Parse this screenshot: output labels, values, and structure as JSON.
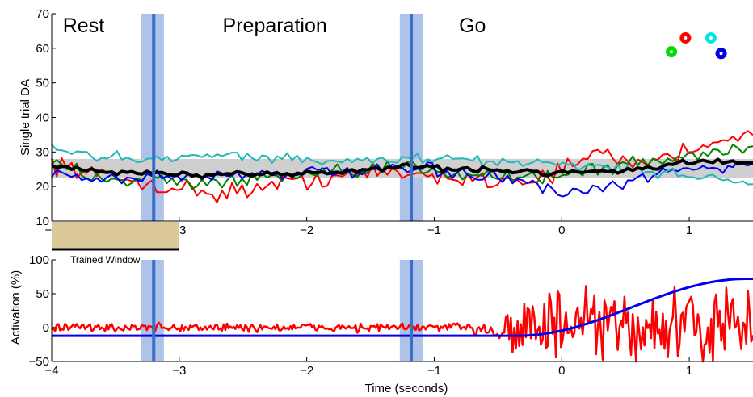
{
  "chart_data": [
    {
      "type": "line",
      "panel": "top",
      "ylabel": "Single trial DA",
      "xlim": [
        -4,
        1.5
      ],
      "ylim": [
        10,
        70
      ],
      "yticks": [
        10,
        20,
        30,
        40,
        50,
        60,
        70
      ],
      "xticks": [
        -4,
        -3,
        -2,
        -1,
        0,
        1
      ],
      "xtick_labels": [
        "−4",
        "−3",
        "−2",
        "−1",
        "0",
        "1"
      ],
      "phases": [
        {
          "label": "Rest",
          "x": -3.75
        },
        {
          "label": "Preparation",
          "x": -2.25
        },
        {
          "label": "Go",
          "x": -0.7
        }
      ],
      "event_lines": [
        {
          "x": -3.2,
          "band": [
            -3.3,
            -3.12
          ]
        },
        {
          "x": -1.18,
          "band": [
            -1.27,
            -1.09
          ]
        }
      ],
      "mean_band": [
        22.5,
        28
      ],
      "legend_markers": [
        {
          "color": "#ff0000",
          "x": 0.97,
          "y": 63
        },
        {
          "color": "#00e5e5",
          "x": 1.17,
          "y": 63
        },
        {
          "color": "#00dd00",
          "x": 0.86,
          "y": 59
        },
        {
          "color": "#0000dd",
          "x": 1.25,
          "y": 58.5
        }
      ],
      "series": [
        {
          "color": "#ff0000",
          "anchors": [
            [
              -4,
              27
            ],
            [
              -3.6,
              23
            ],
            [
              -3.1,
              20
            ],
            [
              -2.7,
              18
            ],
            [
              -2.3,
              20
            ],
            [
              -1.8,
              23
            ],
            [
              -1.4,
              24
            ],
            [
              -1.0,
              23
            ],
            [
              -0.6,
              22
            ],
            [
              -0.25,
              22
            ],
            [
              0.05,
              25
            ],
            [
              0.25,
              30
            ],
            [
              0.5,
              27
            ],
            [
              0.8,
              28
            ],
            [
              1.0,
              31
            ],
            [
              1.2,
              33
            ],
            [
              1.35,
              35
            ],
            [
              1.5,
              34
            ]
          ],
          "noise": 2.3
        },
        {
          "color": "#008000",
          "anchors": [
            [
              -4,
              26
            ],
            [
              -3.6,
              23
            ],
            [
              -3.2,
              22
            ],
            [
              -2.8,
              21
            ],
            [
              -2.4,
              22
            ],
            [
              -2.0,
              23
            ],
            [
              -1.6,
              24
            ],
            [
              -1.2,
              26
            ],
            [
              -0.8,
              24
            ],
            [
              -0.4,
              23
            ],
            [
              -0.1,
              23
            ],
            [
              0.3,
              25
            ],
            [
              0.6,
              27
            ],
            [
              0.9,
              28
            ],
            [
              1.1,
              29
            ],
            [
              1.3,
              31
            ],
            [
              1.5,
              32
            ]
          ],
          "noise": 1.9
        },
        {
          "color": "#0000ee",
          "anchors": [
            [
              -4,
              24
            ],
            [
              -3.6,
              22
            ],
            [
              -3.2,
              23
            ],
            [
              -2.8,
              23
            ],
            [
              -2.4,
              24
            ],
            [
              -2.0,
              24
            ],
            [
              -1.6,
              24
            ],
            [
              -1.2,
              25
            ],
            [
              -0.8,
              24
            ],
            [
              -0.4,
              22
            ],
            [
              -0.25,
              21
            ],
            [
              -0.05,
              18
            ],
            [
              0.2,
              18
            ],
            [
              0.5,
              21
            ],
            [
              0.8,
              24
            ],
            [
              1.0,
              25
            ],
            [
              1.3,
              26
            ],
            [
              1.5,
              27
            ]
          ],
          "noise": 1.6
        },
        {
          "color": "#20b8b8",
          "anchors": [
            [
              -4,
              31
            ],
            [
              -3.7,
              29
            ],
            [
              -3.3,
              28
            ],
            [
              -2.9,
              29
            ],
            [
              -2.5,
              29
            ],
            [
              -2.1,
              28
            ],
            [
              -1.7,
              27
            ],
            [
              -1.3,
              28
            ],
            [
              -0.9,
              28
            ],
            [
              -0.5,
              27
            ],
            [
              -0.1,
              27
            ],
            [
              0.2,
              26
            ],
            [
              0.5,
              25
            ],
            [
              0.8,
              24
            ],
            [
              1.1,
              23
            ],
            [
              1.5,
              21
            ]
          ],
          "noise": 1.3
        },
        {
          "color": "#000000",
          "width": 4,
          "anchors": [
            [
              -4,
              26
            ],
            [
              -3.6,
              24
            ],
            [
              -3.2,
              24
            ],
            [
              -2.8,
              23
            ],
            [
              -2.4,
              23.5
            ],
            [
              -2.0,
              24
            ],
            [
              -1.6,
              24.5
            ],
            [
              -1.2,
              26
            ],
            [
              -0.8,
              25
            ],
            [
              -0.4,
              24.5
            ],
            [
              0.0,
              24
            ],
            [
              0.3,
              24.5
            ],
            [
              0.6,
              25
            ],
            [
              0.9,
              26.5
            ],
            [
              1.2,
              27.5
            ],
            [
              1.5,
              27
            ]
          ],
          "noise": 0.7
        }
      ]
    },
    {
      "type": "line",
      "panel": "bottom",
      "xlabel": "Time (seconds)",
      "ylabel": "Activation (%)",
      "xlim": [
        -4,
        1.5
      ],
      "ylim": [
        -50,
        100
      ],
      "yticks": [
        -50,
        0,
        50,
        100
      ],
      "ytick_labels": [
        "−50",
        "0",
        "50",
        "100"
      ],
      "xticks": [
        -4,
        -3,
        -2,
        -1,
        0,
        1
      ],
      "xtick_labels": [
        "−4",
        "−3",
        "−2",
        "−1",
        "0",
        "1"
      ],
      "trained_window": {
        "label": "Trained Window",
        "x": [
          -4,
          -3
        ]
      },
      "event_lines": [
        {
          "x": -3.2,
          "band": [
            -3.3,
            -3.12
          ]
        },
        {
          "x": -1.18,
          "band": [
            -1.27,
            -1.09
          ]
        }
      ],
      "series": [
        {
          "color": "#0000ee",
          "kind": "sigmoid",
          "y_start": -12,
          "y_end": 72,
          "x_start": -0.35,
          "x_end": 1.45
        },
        {
          "color": "#ff0000",
          "kind": "noise",
          "baseline": 0,
          "amp_rest": 8,
          "amp_go": 45,
          "go_start": -0.7,
          "ymin_clip": -50,
          "ymax_clip": 100
        }
      ]
    }
  ]
}
